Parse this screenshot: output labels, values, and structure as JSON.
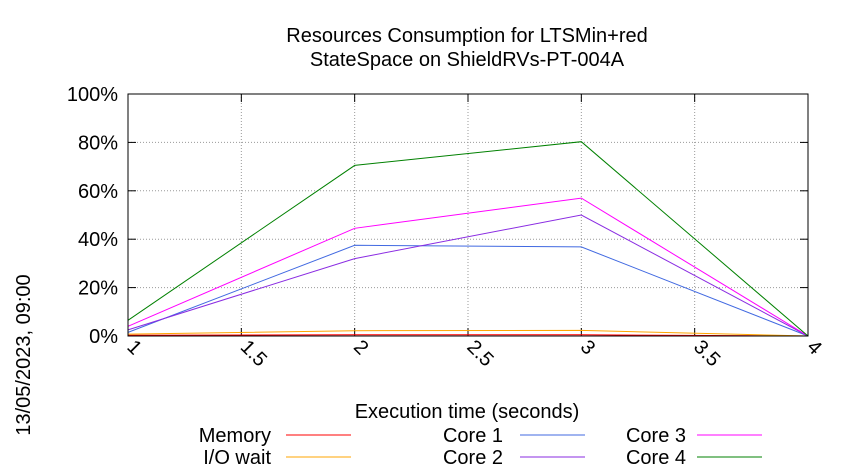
{
  "chart_data": {
    "type": "line",
    "title_lines": [
      "Resources Consumption for LTSMin+red",
      "StateSpace on ShieldRVs-PT-004A"
    ],
    "xlabel": "Execution time (seconds)",
    "ylabel": "",
    "side_label": "13/05/2023, 09:00",
    "xlim": [
      1,
      4
    ],
    "ylim": [
      0,
      100
    ],
    "x_ticks": [
      "1",
      "1.5",
      "2",
      "2.5",
      "3",
      "3.5",
      "4"
    ],
    "y_ticks": [
      "0%",
      "20%",
      "40%",
      "60%",
      "80%",
      "100%"
    ],
    "grid": true,
    "legend_position": "bottom",
    "x": [
      1,
      2,
      3,
      4
    ],
    "series": [
      {
        "name": "Memory",
        "color": "#ff0000",
        "values": [
          0.3,
          0.5,
          0.5,
          0
        ]
      },
      {
        "name": "I/O wait",
        "color": "#ffa500",
        "values": [
          0.8,
          2.2,
          2.3,
          0
        ]
      },
      {
        "name": "Core 1",
        "color": "#4169e1",
        "values": [
          1.5,
          37.5,
          36.8,
          0
        ]
      },
      {
        "name": "Core 2",
        "color": "#8a2be2",
        "values": [
          2.5,
          32.0,
          50.0,
          0
        ]
      },
      {
        "name": "Core 3",
        "color": "#ff00ff",
        "values": [
          4.0,
          44.5,
          57.0,
          0
        ]
      },
      {
        "name": "Core 4",
        "color": "#008000",
        "values": [
          6.5,
          70.5,
          80.3,
          0
        ]
      }
    ]
  }
}
